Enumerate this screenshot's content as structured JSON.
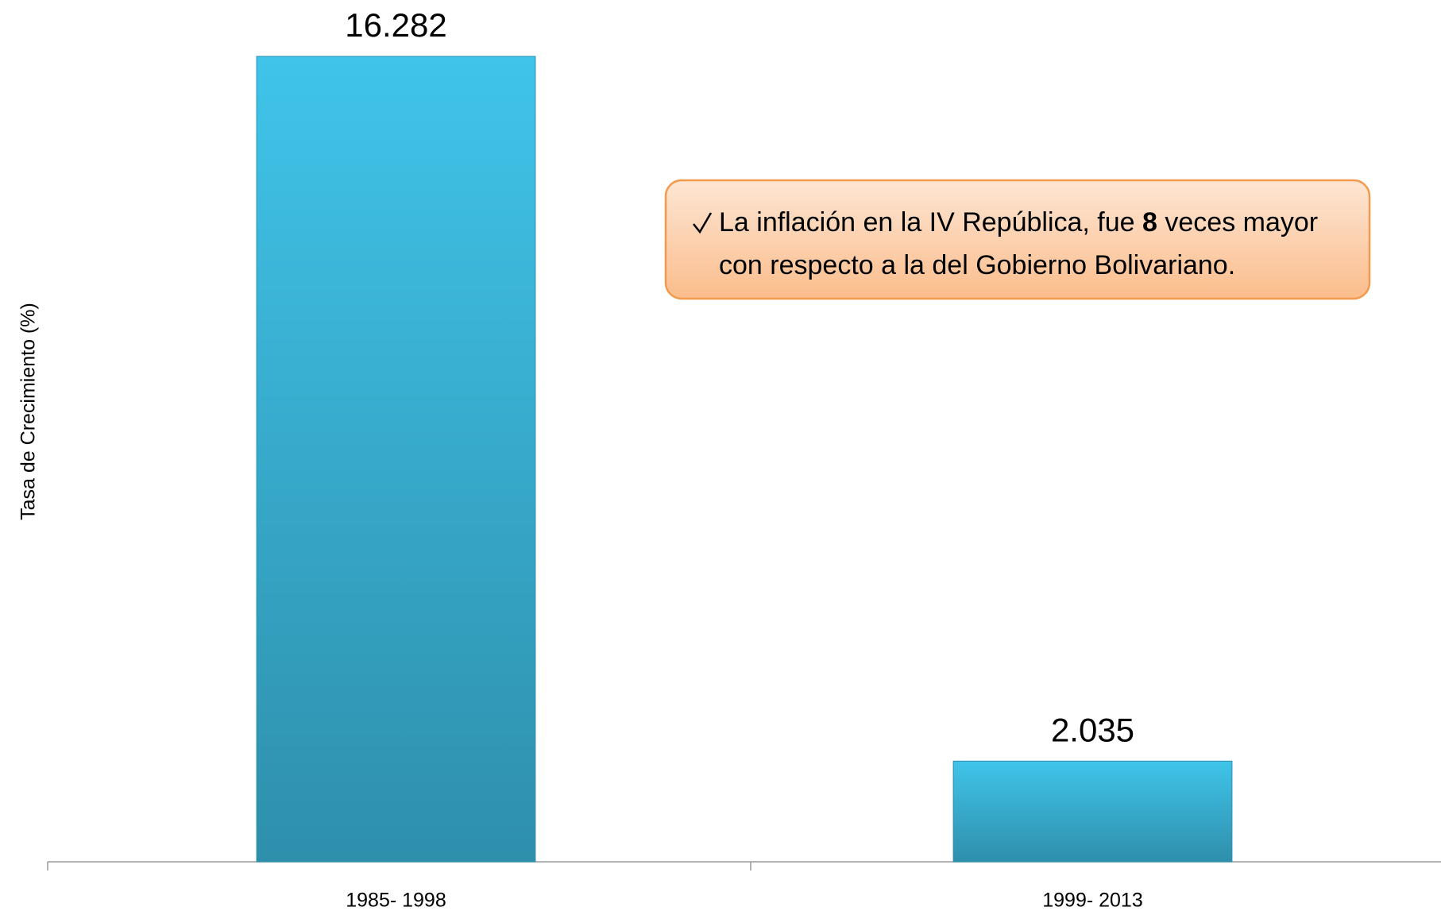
{
  "chart_data": {
    "type": "bar",
    "y_label": "Tasa de Crecimiento (%)",
    "categories": [
      "1985- 1998",
      "1999- 2013"
    ],
    "values": [
      16.282,
      2.035
    ],
    "color": "#38b2d8",
    "annotation": [
      "La inflación en la IV República, fue ",
      "8",
      " veces mayor",
      "con respecto a la del  Gobierno Bolivariano."
    ]
  }
}
